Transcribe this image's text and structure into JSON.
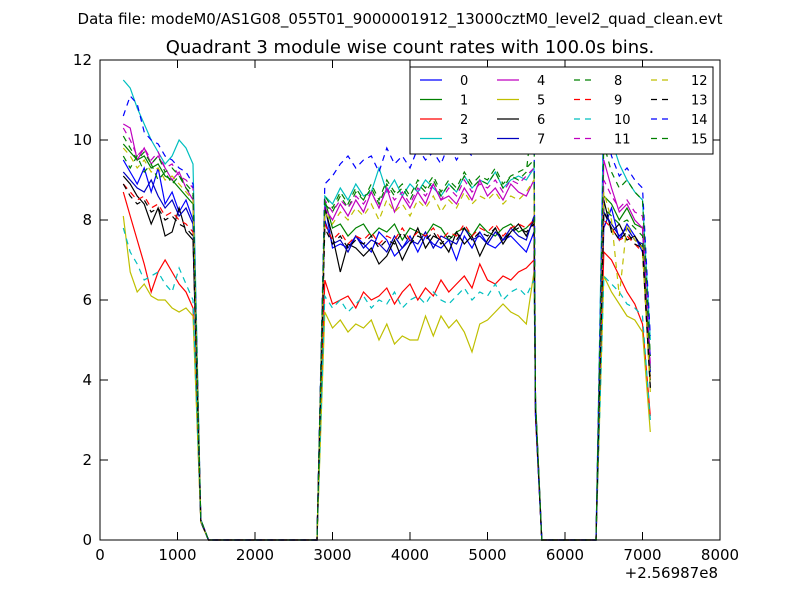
{
  "chart_data": {
    "type": "line",
    "suptitle": "Data file: modeM0/AS1G08_055T01_9000001912_13000cztM0_level2_quad_clean.evt",
    "title": "Quadrant 3 module wise count rates with 100.0s bins.",
    "xlabel": "",
    "ylabel": "",
    "x_offset_label": "+2.56987e8",
    "xlim": [
      0,
      8000
    ],
    "ylim": [
      0,
      12
    ],
    "xticks": [
      "0",
      "1000",
      "2000",
      "3000",
      "4000",
      "5000",
      "6000",
      "7000",
      "8000"
    ],
    "yticks": [
      "0",
      "2",
      "4",
      "6",
      "8",
      "10",
      "12"
    ],
    "legend_position": "top-right",
    "x_note": "x values are seconds relative to the offset; line segments: 300-1300, 1300-2800 (zero gap), 2800-5700, 5700-6400 (zero gap), 6400-7100",
    "segments": [
      [
        300,
        1300
      ],
      [
        2900,
        5600
      ],
      [
        6500,
        7100
      ]
    ],
    "series": [
      {
        "name": "0",
        "color": "#0000ff",
        "dash": false,
        "values": [
          [
            9.5,
            9.2,
            8.9,
            9.3,
            8.7,
            9.3,
            8.4,
            8.7,
            8.2,
            8.5,
            8.0
          ],
          [
            8.4,
            7.3,
            7.4,
            7.3,
            7.6,
            7.4,
            7.2,
            7.7,
            7.5,
            7.1,
            7.3,
            7.6,
            7.2,
            7.6,
            7.4,
            7.3,
            7.5,
            7.0,
            7.6,
            7.3,
            7.7,
            7.4,
            7.3,
            7.5,
            7.6,
            7.4,
            7.2,
            7.7
          ],
          [
            7.8,
            8.3,
            7.5,
            7.9,
            7.6,
            7.2,
            4.6
          ]
        ]
      },
      {
        "name": "1",
        "color": "#008000",
        "dash": false,
        "values": [
          [
            9.9,
            9.7,
            9.5,
            9.6,
            9.3,
            9.4,
            9.1,
            9.0,
            8.8,
            8.6,
            8.4
          ],
          [
            8.5,
            7.8,
            7.9,
            7.6,
            7.8,
            7.9,
            7.6,
            7.8,
            7.7,
            7.9,
            7.5,
            7.8,
            7.7,
            7.6,
            7.9,
            7.8,
            7.5,
            7.7,
            7.8,
            7.6,
            7.9,
            7.7,
            7.6,
            7.8,
            7.9,
            7.7,
            7.8,
            8.0
          ],
          [
            8.6,
            8.4,
            8.0,
            8.3,
            7.9,
            7.8,
            4.0
          ]
        ]
      },
      {
        "name": "2",
        "color": "#ff0000",
        "dash": false,
        "values": [
          [
            8.7,
            8.1,
            7.5,
            6.9,
            6.2,
            6.7,
            7.0,
            6.7,
            6.4,
            6.2,
            5.8
          ],
          [
            6.5,
            5.9,
            6.0,
            6.1,
            5.8,
            6.2,
            6.0,
            6.1,
            6.3,
            5.9,
            6.2,
            6.4,
            6.0,
            6.3,
            6.1,
            6.5,
            6.2,
            6.4,
            6.6,
            6.3,
            6.9,
            6.5,
            6.4,
            6.6,
            6.5,
            6.7,
            6.8,
            7.0
          ],
          [
            7.2,
            7.0,
            6.6,
            6.2,
            5.9,
            5.4,
            3.1
          ]
        ]
      },
      {
        "name": "3",
        "color": "#00bfbf",
        "dash": false,
        "values": [
          [
            11.5,
            11.3,
            10.8,
            10.4,
            10.0,
            9.7,
            9.4,
            9.6,
            10.0,
            9.8,
            9.4
          ],
          [
            8.6,
            8.4,
            8.8,
            8.5,
            8.9,
            8.6,
            8.7,
            9.3,
            8.7,
            9.0,
            8.6,
            8.9,
            8.7,
            9.0,
            8.8,
            8.6,
            8.9,
            8.7,
            9.1,
            8.8,
            9.0,
            8.9,
            9.2,
            8.8,
            9.0,
            9.1,
            9.0,
            9.3
          ],
          [
            10.9,
            10.0,
            9.4,
            9.0,
            8.7,
            8.5,
            5.0
          ]
        ]
      },
      {
        "name": "4",
        "color": "#bf00bf",
        "dash": false,
        "values": [
          [
            10.4,
            10.3,
            9.5,
            9.8,
            9.4,
            9.6,
            9.3,
            9.0,
            9.2,
            8.8,
            8.5
          ],
          [
            8.3,
            8.0,
            8.4,
            8.1,
            8.5,
            8.2,
            8.7,
            8.3,
            8.8,
            8.2,
            8.6,
            8.3,
            8.7,
            8.4,
            8.9,
            8.5,
            8.6,
            8.4,
            8.8,
            8.5,
            9.0,
            8.6,
            8.8,
            8.5,
            8.9,
            8.7,
            8.6,
            9.0
          ],
          [
            9.5,
            8.8,
            8.2,
            8.4,
            8.0,
            7.8,
            4.3
          ]
        ]
      },
      {
        "name": "5",
        "color": "#bfbf00",
        "dash": false,
        "values": [
          [
            8.1,
            6.7,
            6.2,
            6.4,
            6.1,
            6.0,
            6.0,
            5.8,
            5.7,
            5.8,
            5.6
          ],
          [
            5.7,
            5.3,
            5.5,
            5.2,
            5.4,
            5.3,
            5.5,
            5.0,
            5.4,
            4.9,
            5.1,
            5.0,
            5.0,
            5.6,
            5.1,
            5.6,
            5.3,
            5.5,
            5.2,
            4.7,
            5.4,
            5.5,
            5.7,
            5.9,
            5.7,
            5.6,
            5.4,
            6.7
          ],
          [
            6.6,
            6.2,
            5.9,
            5.6,
            5.5,
            5.2,
            2.7
          ]
        ]
      },
      {
        "name": "6",
        "color": "#000000",
        "dash": false,
        "values": [
          [
            9.1,
            8.9,
            8.6,
            8.4,
            7.9,
            8.3,
            7.6,
            7.7,
            8.3,
            7.7,
            7.5
          ],
          [
            8.3,
            7.6,
            6.7,
            7.4,
            7.3,
            7.1,
            7.3,
            6.9,
            7.1,
            7.5,
            7.0,
            7.4,
            7.8,
            7.3,
            7.6,
            7.5,
            7.2,
            7.7,
            7.4,
            7.6,
            7.1,
            7.5,
            7.8,
            7.4,
            7.7,
            7.9,
            7.6,
            8.0
          ],
          [
            8.5,
            7.7,
            7.9,
            7.5,
            7.6,
            7.3,
            3.8
          ]
        ]
      },
      {
        "name": "7",
        "color": "#0000c0",
        "dash": false,
        "values": [
          [
            9.2,
            9.0,
            8.8,
            8.7,
            9.0,
            8.6,
            8.3,
            8.5,
            8.1,
            8.3,
            7.9
          ],
          [
            8.0,
            7.4,
            7.5,
            7.2,
            7.6,
            7.3,
            7.5,
            7.4,
            7.2,
            7.6,
            7.3,
            7.5,
            7.4,
            7.7,
            7.3,
            7.6,
            7.5,
            7.4,
            7.8,
            7.5,
            7.6,
            7.4,
            7.7,
            7.5,
            7.8,
            7.6,
            7.5,
            8.1
          ],
          [
            8.2,
            7.9,
            7.6,
            7.8,
            7.5,
            7.4,
            4.2
          ]
        ]
      },
      {
        "name": "8",
        "color": "#008000",
        "dash": true,
        "values": [
          [
            9.6,
            9.3,
            9.6,
            9.2,
            9.4,
            9.0,
            9.2,
            8.9,
            9.1,
            8.8,
            8.6
          ],
          [
            8.4,
            8.2,
            8.6,
            8.3,
            8.7,
            8.5,
            8.8,
            8.4,
            8.9,
            8.6,
            8.8,
            8.5,
            8.9,
            8.7,
            9.0,
            8.6,
            8.9,
            8.7,
            9.1,
            8.8,
            9.0,
            8.9,
            9.2,
            8.8,
            9.1,
            9.0,
            9.2,
            10.9
          ],
          [
            8.3,
            8.1,
            7.9,
            8.0,
            7.8,
            7.6,
            4.1
          ]
        ]
      },
      {
        "name": "9",
        "color": "#ff0000",
        "dash": true,
        "values": [
          [
            8.9,
            8.7,
            8.5,
            8.6,
            8.3,
            8.4,
            8.1,
            8.2,
            8.0,
            7.9,
            7.7
          ],
          [
            7.9,
            7.5,
            7.7,
            7.4,
            7.6,
            7.5,
            7.7,
            7.4,
            7.6,
            7.5,
            7.8,
            7.5,
            7.7,
            7.6,
            7.8,
            7.5,
            7.7,
            7.6,
            7.9,
            7.6,
            7.8,
            7.7,
            7.9,
            7.6,
            7.8,
            7.9,
            7.8,
            8.0
          ],
          [
            8.0,
            7.8,
            7.5,
            7.6,
            7.4,
            7.2,
            3.9
          ]
        ]
      },
      {
        "name": "10",
        "color": "#00bfbf",
        "dash": true,
        "values": [
          [
            7.8,
            7.2,
            6.9,
            6.5,
            6.6,
            6.7,
            6.4,
            6.2,
            6.8,
            6.4,
            6.0
          ],
          [
            6.1,
            5.8,
            6.0,
            5.7,
            5.9,
            6.1,
            5.8,
            6.0,
            5.9,
            6.2,
            5.8,
            6.0,
            6.1,
            5.9,
            6.2,
            6.0,
            5.9,
            6.1,
            6.3,
            6.0,
            6.2,
            6.1,
            6.4,
            6.0,
            6.2,
            6.3,
            6.1,
            6.5
          ],
          [
            6.6,
            6.4,
            6.2,
            5.9,
            5.8,
            5.6,
            3.0
          ]
        ]
      },
      {
        "name": "11",
        "color": "#bf00bf",
        "dash": true,
        "values": [
          [
            10.3,
            10.0,
            9.6,
            9.8,
            9.5,
            9.7,
            9.3,
            9.4,
            9.1,
            9.0,
            8.8
          ],
          [
            8.5,
            8.2,
            8.5,
            8.3,
            8.6,
            8.4,
            8.7,
            8.3,
            8.8,
            8.5,
            8.7,
            8.4,
            8.8,
            8.6,
            8.9,
            8.5,
            8.8,
            8.6,
            9.0,
            8.7,
            8.9,
            8.8,
            9.0,
            8.7,
            9.0,
            8.9,
            9.1,
            9.3
          ],
          [
            9.0,
            8.6,
            8.3,
            8.5,
            8.2,
            8.1,
            4.4
          ]
        ]
      },
      {
        "name": "12",
        "color": "#bfbf00",
        "dash": true,
        "values": [
          [
            9.8,
            9.6,
            9.3,
            9.5,
            9.2,
            9.3,
            9.0,
            9.1,
            8.9,
            8.7,
            8.5
          ],
          [
            8.2,
            7.9,
            8.2,
            8.0,
            8.3,
            8.1,
            8.4,
            8.0,
            8.5,
            8.2,
            8.4,
            8.1,
            8.5,
            8.3,
            8.6,
            8.2,
            8.5,
            8.3,
            8.7,
            8.4,
            8.6,
            8.5,
            8.7,
            8.4,
            8.6,
            8.5,
            8.7,
            9.0
          ],
          [
            8.7,
            8.0,
            6.1,
            7.9,
            7.5,
            7.3,
            3.7
          ]
        ]
      },
      {
        "name": "13",
        "color": "#000000",
        "dash": true,
        "values": [
          [
            8.9,
            8.6,
            8.4,
            8.5,
            8.2,
            8.3,
            8.0,
            8.1,
            7.9,
            7.8,
            7.6
          ],
          [
            7.8,
            7.4,
            7.6,
            7.3,
            7.5,
            7.4,
            7.6,
            7.3,
            7.5,
            7.4,
            7.7,
            7.4,
            7.6,
            7.5,
            7.7,
            7.4,
            7.6,
            7.5,
            7.8,
            7.5,
            7.7,
            7.6,
            7.8,
            7.5,
            7.7,
            7.8,
            7.7,
            7.9
          ],
          [
            8.2,
            7.8,
            7.5,
            7.7,
            7.4,
            7.3,
            3.8
          ]
        ]
      },
      {
        "name": "14",
        "color": "#0000ff",
        "dash": true,
        "values": [
          [
            10.6,
            11.1,
            10.9,
            10.2,
            10.0,
            9.9,
            9.6,
            9.5,
            9.3,
            9.2,
            8.9
          ],
          [
            8.9,
            9.1,
            9.4,
            9.6,
            9.3,
            9.5,
            9.6,
            9.2,
            9.8,
            9.4,
            9.6,
            9.3,
            9.8,
            9.5,
            9.7,
            9.4,
            9.9,
            9.5,
            9.8,
            9.6,
            10.0,
            9.7,
            10.1,
            9.8,
            10.2,
            10.0,
            10.4,
            10.8
          ],
          [
            10.4,
            9.6,
            9.1,
            9.3,
            9.0,
            8.8,
            5.1
          ]
        ]
      },
      {
        "name": "15",
        "color": "#008000",
        "dash": true,
        "values": [
          [
            10.1,
            9.8,
            9.5,
            9.7,
            9.4,
            9.6,
            9.2,
            9.3,
            9.1,
            8.9,
            8.7
          ],
          [
            8.6,
            8.3,
            8.7,
            8.4,
            8.8,
            8.5,
            8.9,
            8.5,
            9.0,
            8.7,
            8.9,
            8.6,
            9.0,
            8.8,
            9.1,
            8.7,
            9.0,
            8.8,
            9.2,
            8.9,
            9.1,
            9.0,
            9.3,
            8.9,
            9.1,
            9.2,
            9.3,
            9.5
          ],
          [
            9.9,
            9.2,
            8.8,
            9.0,
            8.7,
            8.5,
            4.6
          ]
        ]
      }
    ]
  }
}
